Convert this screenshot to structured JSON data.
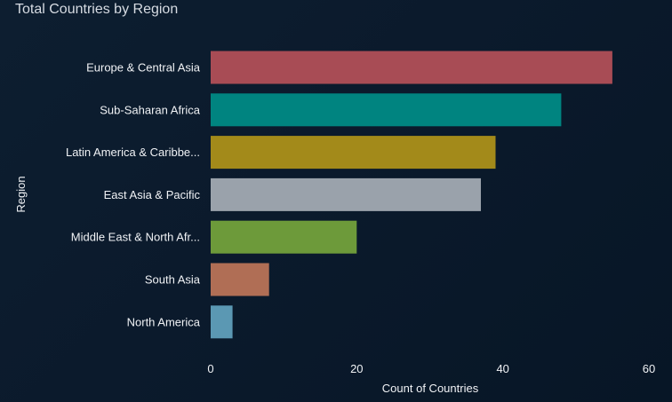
{
  "chart_data": {
    "type": "bar",
    "orientation": "horizontal",
    "title": "Total Countries by Region",
    "xlabel": "Count of Countries",
    "ylabel": "Region",
    "xlim": [
      0,
      60
    ],
    "x_ticks": [
      "0",
      "20",
      "40",
      "60"
    ],
    "grid": false,
    "legend": "none",
    "categories": [
      "Europe & Central Asia",
      "Sub-Saharan Africa",
      "Latin America & Caribbe...",
      "East Asia & Pacific",
      "Middle East & North Afr...",
      "South Asia",
      "North America"
    ],
    "values": [
      55,
      48,
      39,
      37,
      20,
      8,
      3
    ],
    "colors": [
      "#a84c55",
      "#008480",
      "#a38a1a",
      "#9aa2ab",
      "#6d9a3a",
      "#b06e55",
      "#5b98b3"
    ]
  }
}
